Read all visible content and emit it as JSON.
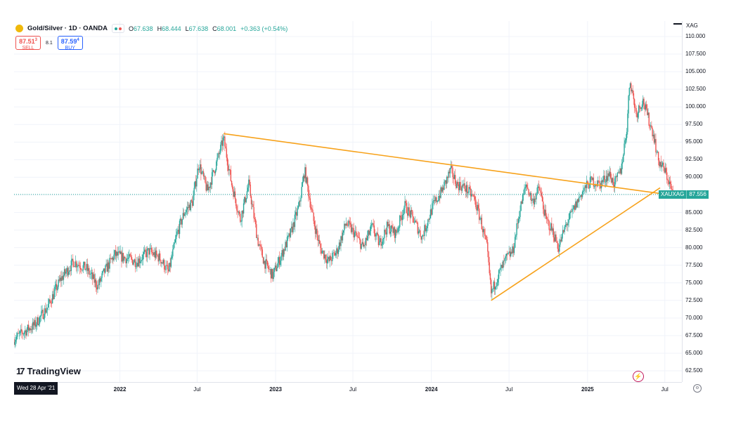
{
  "header": {
    "symbol_label": "Gold/Silver · 1D · OANDA",
    "ohlc": {
      "open_label": "O",
      "open": "67.638",
      "high_label": "H",
      "high": "68.444",
      "low_label": "L",
      "low": "67.638",
      "close_label": "C",
      "close": "68.001",
      "change": "+0.363 (+0.54%)"
    }
  },
  "trade": {
    "sell_price": "87.51",
    "sell_sup": "3",
    "sell_label": "SELL",
    "spread": "8.1",
    "buy_price": "87.59",
    "buy_sup": "4",
    "buy_label": "BUY"
  },
  "price_axis": {
    "currency": "XAG",
    "ticks": [
      "110.000",
      "107.500",
      "105.000",
      "102.500",
      "100.000",
      "97.500",
      "95.000",
      "92.500",
      "90.000",
      "87.500",
      "85.000",
      "82.500",
      "80.000",
      "77.500",
      "75.000",
      "72.500",
      "70.000",
      "67.500",
      "65.000",
      "62.500"
    ]
  },
  "price_tag": {
    "symbol": "XAUXAG",
    "value": "87.556"
  },
  "time_axis": {
    "crosshair_date": "Wed 28 Apr '21",
    "ticks": [
      {
        "label": "2022",
        "year": true
      },
      {
        "label": "Jul",
        "year": false
      },
      {
        "label": "2023",
        "year": true
      },
      {
        "label": "Jul",
        "year": false
      },
      {
        "label": "2024",
        "year": true
      },
      {
        "label": "Jul",
        "year": false
      },
      {
        "label": "2025",
        "year": true
      },
      {
        "label": "Jul",
        "year": false
      }
    ]
  },
  "branding": {
    "logo_text": "TradingView",
    "logo_mark": "17"
  },
  "colors": {
    "up": "#26a69a",
    "down": "#ef5350",
    "trendline": "#f7a21b",
    "grid": "#f0f3fa"
  },
  "chart_data": {
    "type": "candlestick",
    "title": "Gold/Silver · 1D · OANDA",
    "symbol": "XAUXAG",
    "ylim": [
      60.0,
      112.0
    ],
    "x_range": [
      "2021-04-28",
      "2025-08-10"
    ],
    "grid": true,
    "series_approx_close": [
      [
        "2021-04-28",
        67.0
      ],
      [
        "2021-05-20",
        68.0
      ],
      [
        "2021-06-15",
        69.0
      ],
      [
        "2021-07-15",
        71.5
      ],
      [
        "2021-08-15",
        75.5
      ],
      [
        "2021-09-15",
        78.0
      ],
      [
        "2021-10-15",
        77.0
      ],
      [
        "2021-11-10",
        74.5
      ],
      [
        "2021-11-25",
        76.5
      ],
      [
        "2021-12-20",
        79.0
      ],
      [
        "2022-01-15",
        78.5
      ],
      [
        "2022-02-10",
        78.0
      ],
      [
        "2022-03-10",
        79.5
      ],
      [
        "2022-04-05",
        78.5
      ],
      [
        "2022-04-25",
        76.5
      ],
      [
        "2022-05-15",
        82.0
      ],
      [
        "2022-06-01",
        85.0
      ],
      [
        "2022-06-20",
        86.5
      ],
      [
        "2022-07-05",
        92.0
      ],
      [
        "2022-07-25",
        88.0
      ],
      [
        "2022-08-15",
        92.0
      ],
      [
        "2022-09-01",
        95.5
      ],
      [
        "2022-09-20",
        89.0
      ],
      [
        "2022-10-10",
        84.0
      ],
      [
        "2022-10-30",
        89.0
      ],
      [
        "2022-11-20",
        81.0
      ],
      [
        "2022-12-05",
        78.0
      ],
      [
        "2022-12-25",
        76.0
      ],
      [
        "2023-01-15",
        79.0
      ],
      [
        "2023-02-05",
        82.0
      ],
      [
        "2023-02-25",
        86.0
      ],
      [
        "2023-03-10",
        91.0
      ],
      [
        "2023-03-30",
        84.0
      ],
      [
        "2023-04-15",
        80.0
      ],
      [
        "2023-05-05",
        78.0
      ],
      [
        "2023-05-25",
        79.5
      ],
      [
        "2023-06-15",
        83.5
      ],
      [
        "2023-07-05",
        82.0
      ],
      [
        "2023-07-25",
        80.0
      ],
      [
        "2023-08-15",
        83.0
      ],
      [
        "2023-09-01",
        80.5
      ],
      [
        "2023-09-20",
        83.0
      ],
      [
        "2023-10-10",
        82.0
      ],
      [
        "2023-10-30",
        86.0
      ],
      [
        "2023-11-20",
        84.0
      ],
      [
        "2023-12-10",
        81.5
      ],
      [
        "2024-01-05",
        86.0
      ],
      [
        "2024-01-25",
        88.0
      ],
      [
        "2024-02-15",
        91.0
      ],
      [
        "2024-03-01",
        89.0
      ],
      [
        "2024-03-20",
        88.5
      ],
      [
        "2024-04-10",
        87.0
      ],
      [
        "2024-04-25",
        84.0
      ],
      [
        "2024-05-10",
        80.0
      ],
      [
        "2024-05-20",
        73.5
      ],
      [
        "2024-06-05",
        76.0
      ],
      [
        "2024-06-25",
        78.5
      ],
      [
        "2024-07-10",
        79.5
      ],
      [
        "2024-07-25",
        85.0
      ],
      [
        "2024-08-10",
        89.0
      ],
      [
        "2024-08-25",
        86.5
      ],
      [
        "2024-09-10",
        88.5
      ],
      [
        "2024-09-25",
        84.0
      ],
      [
        "2024-10-10",
        82.5
      ],
      [
        "2024-10-25",
        80.0
      ],
      [
        "2024-11-10",
        83.0
      ],
      [
        "2024-11-30",
        85.5
      ],
      [
        "2024-12-20",
        88.0
      ],
      [
        "2025-01-10",
        89.5
      ],
      [
        "2025-01-30",
        89.0
      ],
      [
        "2025-02-20",
        90.5
      ],
      [
        "2025-03-05",
        89.0
      ],
      [
        "2025-03-20",
        91.0
      ],
      [
        "2025-04-03",
        97.0
      ],
      [
        "2025-04-10",
        104.0
      ],
      [
        "2025-04-25",
        99.0
      ],
      [
        "2025-05-10",
        101.0
      ],
      [
        "2025-05-25",
        98.0
      ],
      [
        "2025-06-05",
        96.0
      ],
      [
        "2025-06-15",
        92.5
      ],
      [
        "2025-06-30",
        91.0
      ],
      [
        "2025-07-10",
        89.5
      ],
      [
        "2025-07-20",
        87.556
      ]
    ],
    "trendlines": [
      {
        "from": [
          "2022-09-01",
          96.2
        ],
        "to": [
          "2025-07-25",
          87.4
        ]
      },
      {
        "from": [
          "2024-05-20",
          72.5
        ],
        "to": [
          "2025-06-20",
          88.5
        ]
      }
    ]
  }
}
